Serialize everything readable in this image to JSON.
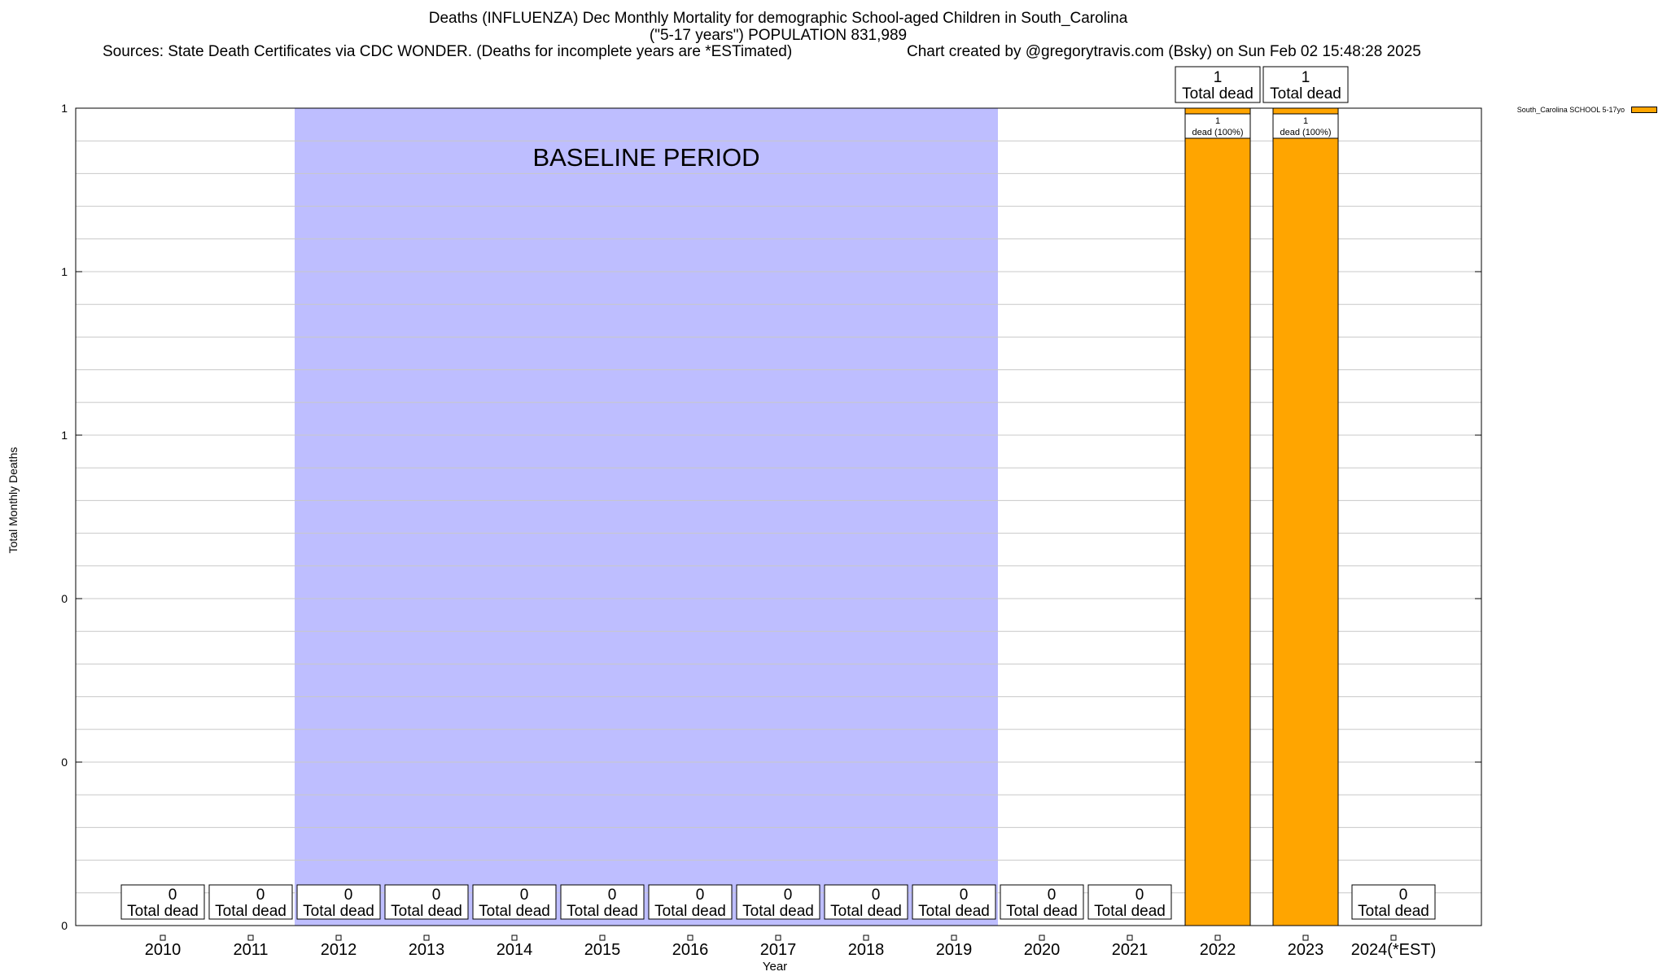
{
  "chart_data": {
    "type": "bar",
    "title": "Deaths (INFLUENZA) Dec Monthly Mortality for demographic School-aged Children in South_Carolina",
    "subtitle": "(\"5-17 years\") POPULATION 831,989",
    "sources": "Sources: State Death Certificates via CDC WONDER. (Deaths for incomplete years are *ESTimated)",
    "credit": "Chart created by @gregorytravis.com (Bsky) on Sun Feb 02 15:48:28 2025",
    "xlabel": "Year",
    "ylabel": "Total Monthly Deaths",
    "ylim": [
      0,
      1
    ],
    "y_tick_labels": [
      "0",
      "0",
      "0",
      "1",
      "1",
      "1"
    ],
    "categories": [
      "2010",
      "2011",
      "2012",
      "2013",
      "2014",
      "2015",
      "2016",
      "2017",
      "2018",
      "2019",
      "2020",
      "2021",
      "2022",
      "2023",
      "2024(*EST)"
    ],
    "series": [
      {
        "name": "South_Carolina SCHOOL 5-17yo",
        "color": "#ffa500",
        "values": [
          0,
          0,
          0,
          0,
          0,
          0,
          0,
          0,
          0,
          0,
          0,
          0,
          1,
          1,
          0
        ]
      }
    ],
    "total_label_suffix": "Total dead",
    "inner_labels": [
      null,
      null,
      null,
      null,
      null,
      null,
      null,
      null,
      null,
      null,
      null,
      null,
      "dead (100%)",
      "dead (100%)",
      null
    ],
    "baseline": {
      "label": "BASELINE PERIOD",
      "from": "2012",
      "to": "2019",
      "color": "#bebeff"
    },
    "grid": true,
    "legend": "top-right"
  }
}
